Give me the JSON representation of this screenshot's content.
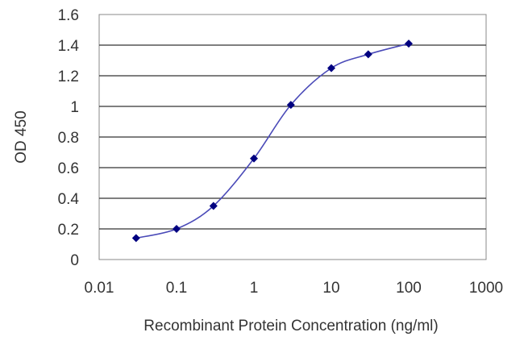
{
  "chart_data": {
    "type": "line",
    "title": "",
    "xlabel": "Recombinant Protein Concentration (ng/ml)",
    "ylabel": "OD 450",
    "x_scale": "log",
    "xlim": [
      0.01,
      1000
    ],
    "ylim": [
      0,
      1.6
    ],
    "x_ticks": [
      "0.01",
      "0.1",
      "1",
      "10",
      "100",
      "1000"
    ],
    "y_ticks": [
      "0",
      "0.2",
      "0.4",
      "0.6",
      "0.8",
      "1",
      "1.2",
      "1.4",
      "1.6"
    ],
    "grid": "horizontal",
    "legend": "none",
    "series": [
      {
        "x": [
          0.03,
          0.1,
          0.3,
          1,
          3,
          10,
          30,
          100
        ],
        "y": [
          0.14,
          0.2,
          0.35,
          0.66,
          1.01,
          1.25,
          1.34,
          1.41
        ],
        "color": "#000080",
        "line_color": "#4a4ab8",
        "marker": "diamond"
      }
    ]
  }
}
